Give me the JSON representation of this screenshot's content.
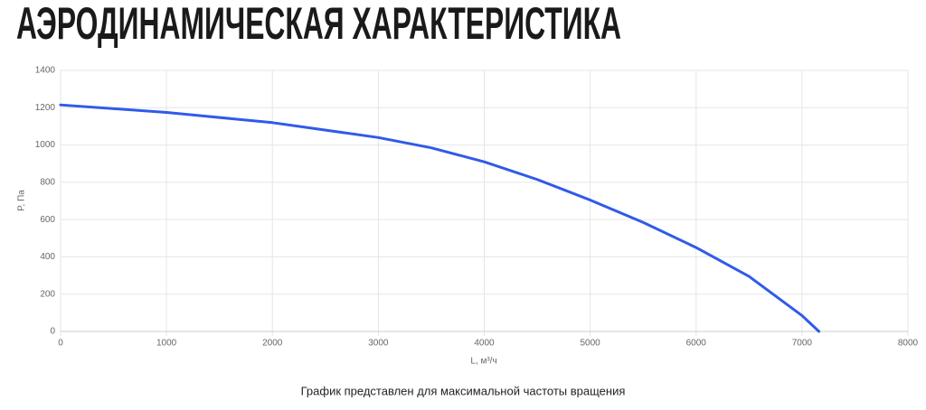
{
  "chart_data": {
    "type": "line",
    "title": "АЭРОДИНАМИЧЕСКАЯ ХАРАКТЕРИСТИКА",
    "x_label": "L, м³/ч",
    "y_label": "P, Па",
    "caption": "График представлен для максимальной частоты вращения",
    "x": [
      0,
      1000,
      2000,
      3000,
      3500,
      4000,
      4500,
      5000,
      5500,
      6000,
      6500,
      7000,
      7160
    ],
    "series": [
      {
        "name": "P",
        "color": "#2f5be8",
        "values": [
          1215,
          1175,
          1120,
          1040,
          985,
          910,
          815,
          705,
          585,
          450,
          295,
          85,
          0
        ]
      }
    ],
    "xlim": [
      0,
      8000
    ],
    "xticks": [
      0,
      1000,
      2000,
      3000,
      4000,
      5000,
      6000,
      7000,
      8000
    ],
    "ylim": [
      0,
      1400
    ],
    "yticks": [
      0,
      200,
      400,
      600,
      800,
      1000,
      1200,
      1400
    ],
    "grid": true
  }
}
